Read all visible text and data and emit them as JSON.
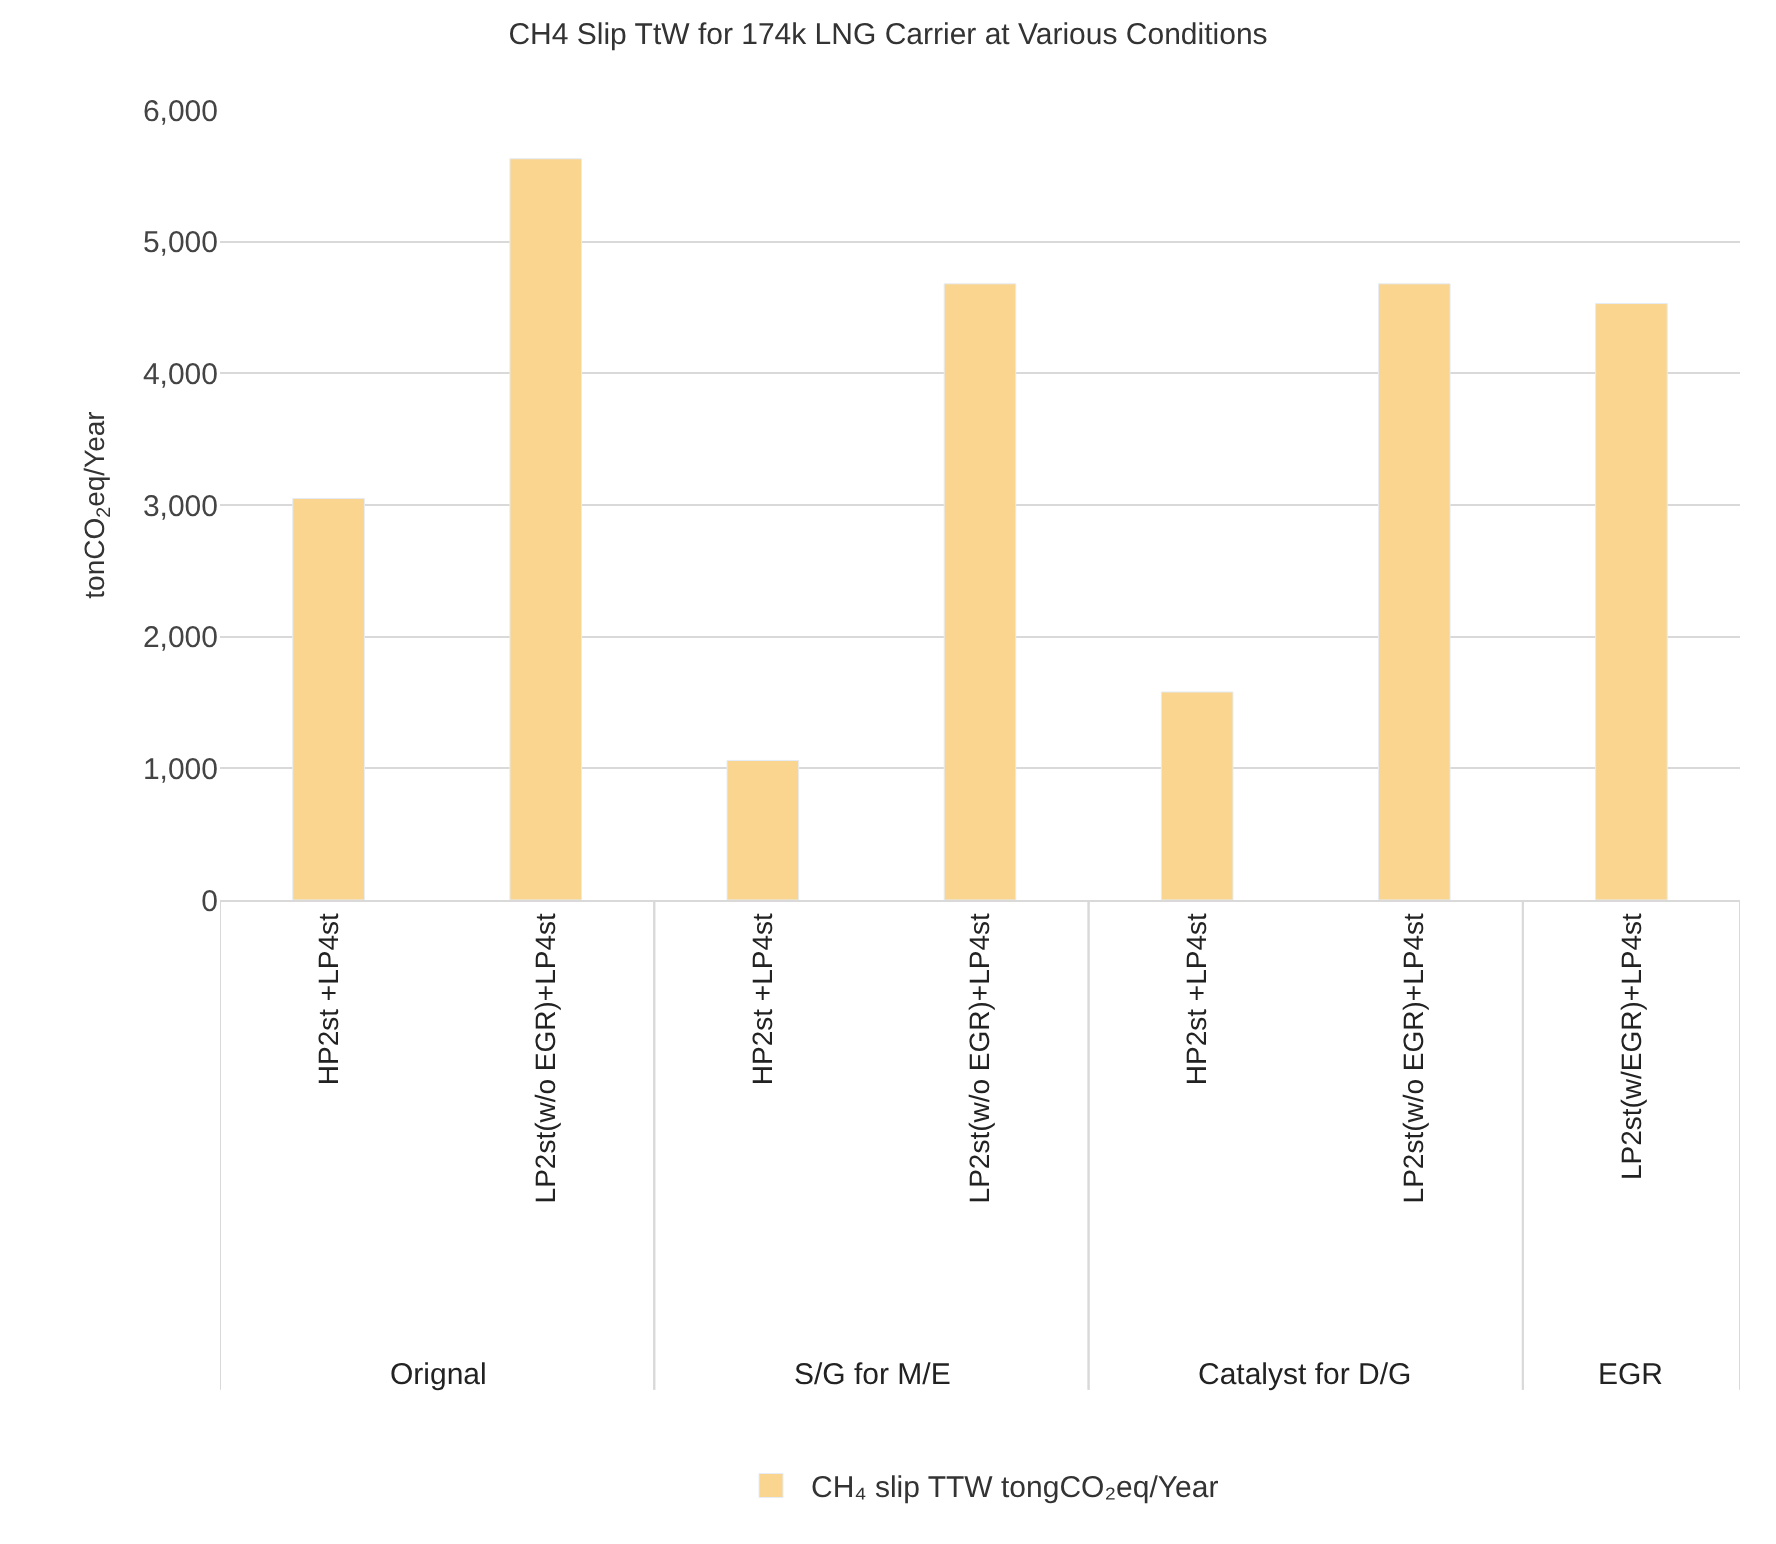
{
  "chart_data": {
    "type": "bar",
    "title": "CH4 Slip TtW for 174k LNG Carrier at Various Conditions",
    "ylabel": "tonCO$_{2}$eq/Year",
    "categories": [
      "HP2st +LP4st",
      "LP2st(w/o EGR)+LP4st",
      "HP2st +LP4st",
      "LP2st(w/o EGR)+LP4st",
      "HP2st +LP4st",
      "LP2st(w/o EGR)+LP4st",
      "LP2st(w/EGR)+LP4st"
    ],
    "series": [
      {
        "name": "CH₄ slip TTW tongCO₂eq/Year",
        "color": "#f9d58f",
        "values": [
          3050,
          5630,
          1060,
          4680,
          1580,
          4680,
          4530
        ]
      }
    ],
    "annotations": [
      "Orignal",
      "S/G for M/E",
      "Catalyst for D/G",
      "EGR"
    ],
    "ylim": [
      0,
      6000
    ],
    "yticks": [
      {
        "value": 0,
        "label": "0"
      },
      {
        "value": 1000,
        "label": "1,000"
      },
      {
        "value": 2000,
        "label": "2,000"
      },
      {
        "value": 3000,
        "label": "3,000"
      },
      {
        "value": 4000,
        "label": "4,000"
      },
      {
        "value": 5000,
        "label": "5,000"
      },
      {
        "value": 6000,
        "label": "6,000"
      }
    ],
    "grid": "y",
    "legend": "bottom"
  }
}
